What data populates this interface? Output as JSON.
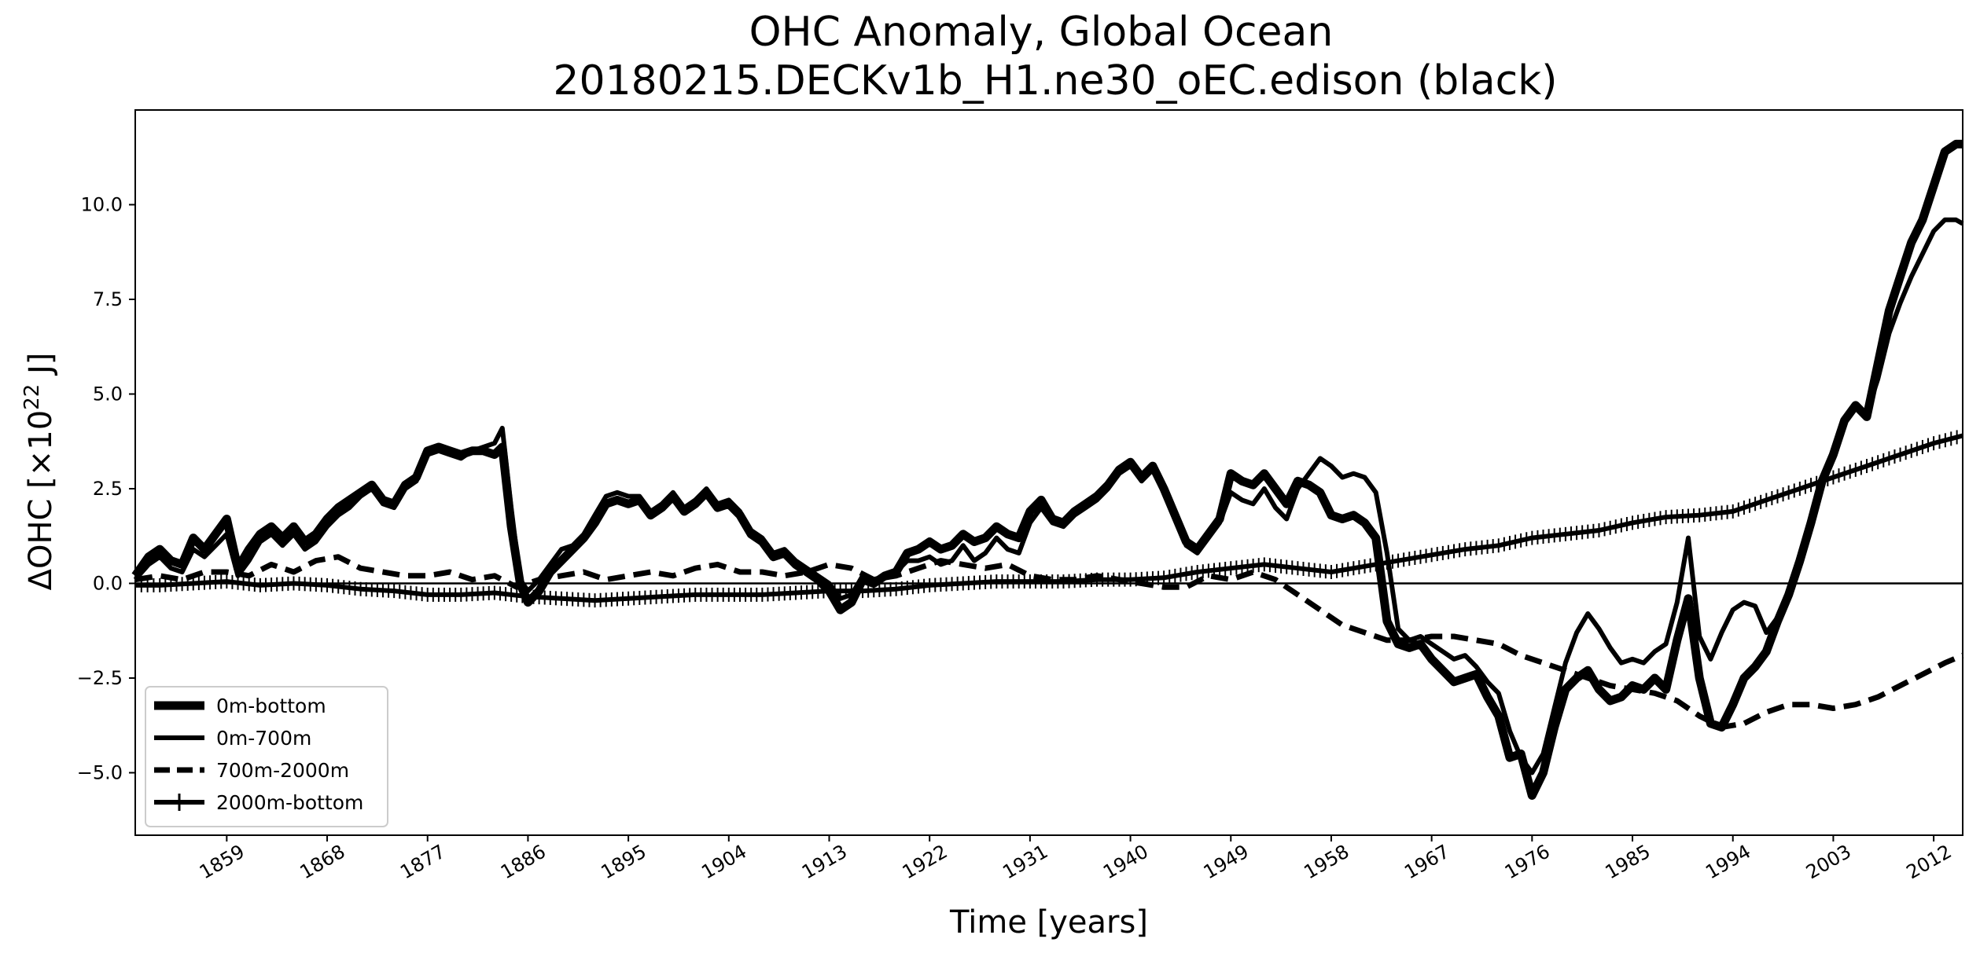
{
  "chart_data": {
    "type": "line",
    "title_line1": "OHC Anomaly, Global Ocean",
    "title_line2": "20180215.DECKv1b_H1.ne30_oEC.edison (black)",
    "xlabel": "Time [years]",
    "ylabel": "ΔOHC [×10",
    "ylabel_exp": "22",
    "ylabel_unit": " J]",
    "xlim": [
      1850.8,
      2014.6
    ],
    "ylim": [
      -6.65,
      12.5
    ],
    "xticks": [
      1859,
      1868,
      1877,
      1886,
      1895,
      1904,
      1913,
      1922,
      1931,
      1940,
      1949,
      1958,
      1967,
      1976,
      1985,
      1994,
      2003,
      2012
    ],
    "yticks": [
      -5.0,
      -2.5,
      0.0,
      2.5,
      5.0,
      7.5,
      10.0
    ],
    "ytick_labels": [
      "−5.0",
      "−2.5",
      "0.0",
      "2.5",
      "5.0",
      "7.5",
      "10.0"
    ],
    "zero_line": 0,
    "legend_position": "lower-left",
    "colors": {
      "line": "#000000",
      "background": "#ffffff",
      "legend_border": "#cccccc"
    },
    "series": [
      {
        "name": "0m-bottom",
        "style": "thick-solid",
        "x": [
          1850.8,
          1852,
          1853,
          1854,
          1855,
          1856,
          1857,
          1858,
          1859,
          1860,
          1861,
          1862,
          1863,
          1864,
          1865,
          1866,
          1867,
          1868,
          1869,
          1870,
          1871,
          1872,
          1873,
          1874,
          1875,
          1876,
          1877,
          1878,
          1879,
          1880,
          1881,
          1882,
          1883,
          1883.7,
          1884.5,
          1885.3,
          1886,
          1887,
          1888,
          1889,
          1890,
          1891,
          1892,
          1893,
          1894,
          1895,
          1896,
          1897,
          1898,
          1899,
          1900,
          1901,
          1902,
          1903,
          1904,
          1905,
          1906,
          1907,
          1908,
          1909,
          1910,
          1911,
          1912,
          1913,
          1914,
          1915,
          1916,
          1917,
          1918,
          1919,
          1920,
          1921,
          1922,
          1923,
          1924,
          1925,
          1926,
          1927,
          1928,
          1929,
          1930,
          1931,
          1932,
          1933,
          1934,
          1935,
          1936,
          1937,
          1938,
          1939,
          1940,
          1941,
          1942,
          1943,
          1944,
          1945,
          1946,
          1947,
          1948,
          1949,
          1950,
          1951,
          1952,
          1953,
          1954,
          1955,
          1956,
          1957,
          1958,
          1959,
          1960,
          1961,
          1962,
          1963,
          1964,
          1965,
          1966,
          1967,
          1968,
          1969,
          1970,
          1971,
          1972,
          1973,
          1974,
          1975,
          1976,
          1977,
          1978,
          1979,
          1980,
          1981,
          1982,
          1983,
          1984,
          1985,
          1986,
          1987,
          1988,
          1989,
          1990,
          1991,
          1992,
          1993,
          1994,
          1995,
          1996,
          1997,
          1998,
          1999,
          2000,
          2001,
          2002,
          2003,
          2004,
          2005,
          2006,
          2007,
          2008,
          2009,
          2010,
          2011,
          2012,
          2013,
          2014,
          2014.6
        ],
        "y": [
          0.2,
          0.7,
          0.9,
          0.6,
          0.5,
          1.2,
          0.9,
          1.3,
          1.7,
          0.4,
          0.9,
          1.3,
          1.5,
          1.2,
          1.5,
          1.1,
          1.3,
          1.7,
          2.0,
          2.2,
          2.4,
          2.6,
          2.2,
          2.1,
          2.6,
          2.8,
          3.5,
          3.6,
          3.5,
          3.4,
          3.5,
          3.5,
          3.4,
          3.6,
          1.5,
          0.0,
          -0.5,
          -0.2,
          0.3,
          0.6,
          0.9,
          1.2,
          1.6,
          2.1,
          2.2,
          2.1,
          2.2,
          1.8,
          2.0,
          2.3,
          1.9,
          2.1,
          2.4,
          2.0,
          2.1,
          1.8,
          1.3,
          1.1,
          0.7,
          0.8,
          0.5,
          0.3,
          0.1,
          -0.2,
          -0.7,
          -0.5,
          0.1,
          0.0,
          0.2,
          0.3,
          0.8,
          0.9,
          1.1,
          0.9,
          1.0,
          1.3,
          1.1,
          1.2,
          1.5,
          1.3,
          1.2,
          1.9,
          2.2,
          1.7,
          1.6,
          1.9,
          2.1,
          2.3,
          2.6,
          3.0,
          3.2,
          2.8,
          3.1,
          2.5,
          1.8,
          1.1,
          0.9,
          1.3,
          1.7,
          2.9,
          2.7,
          2.6,
          2.9,
          2.5,
          2.1,
          2.7,
          2.6,
          2.4,
          1.8,
          1.7,
          1.8,
          1.6,
          1.2,
          -1.0,
          -1.6,
          -1.7,
          -1.6,
          -2.0,
          -2.3,
          -2.6,
          -2.5,
          -2.4,
          -3.0,
          -3.5,
          -4.6,
          -4.5,
          -5.6,
          -5.0,
          -3.8,
          -2.8,
          -2.5,
          -2.3,
          -2.8,
          -3.1,
          -3.0,
          -2.7,
          -2.8,
          -2.5,
          -2.8,
          -1.5,
          -0.4,
          -2.5,
          -3.7,
          -3.8,
          -3.2,
          -2.5,
          -2.2,
          -1.8,
          -1.0,
          -0.3,
          0.6,
          1.6,
          2.7,
          3.4,
          4.3,
          4.7,
          4.4,
          5.8,
          7.2,
          8.1,
          9.0,
          9.6,
          10.5,
          11.4,
          11.6,
          11.6
        ]
      },
      {
        "name": "0m-700m",
        "style": "solid",
        "x": [
          1850.8,
          1852,
          1853,
          1854,
          1855,
          1856,
          1857,
          1858,
          1859,
          1860,
          1861,
          1862,
          1863,
          1864,
          1865,
          1866,
          1867,
          1868,
          1869,
          1870,
          1871,
          1872,
          1873,
          1874,
          1875,
          1876,
          1877,
          1878,
          1879,
          1880,
          1881,
          1882,
          1883,
          1883.7,
          1884.5,
          1885.3,
          1886,
          1887,
          1888,
          1889,
          1890,
          1891,
          1892,
          1893,
          1894,
          1895,
          1896,
          1897,
          1898,
          1899,
          1900,
          1901,
          1902,
          1903,
          1904,
          1905,
          1906,
          1907,
          1908,
          1909,
          1910,
          1911,
          1912,
          1913,
          1914,
          1915,
          1916,
          1917,
          1918,
          1919,
          1920,
          1921,
          1922,
          1923,
          1924,
          1925,
          1926,
          1927,
          1928,
          1929,
          1930,
          1931,
          1932,
          1933,
          1934,
          1935,
          1936,
          1937,
          1938,
          1939,
          1940,
          1941,
          1942,
          1943,
          1944,
          1945,
          1946,
          1947,
          1948,
          1949,
          1950,
          1951,
          1952,
          1953,
          1954,
          1955,
          1956,
          1957,
          1958,
          1959,
          1960,
          1961,
          1962,
          1963,
          1964,
          1965,
          1966,
          1967,
          1968,
          1969,
          1970,
          1971,
          1972,
          1973,
          1974,
          1975,
          1976,
          1977,
          1978,
          1979,
          1980,
          1981,
          1982,
          1983,
          1984,
          1985,
          1986,
          1987,
          1988,
          1989,
          1990,
          1991,
          1992,
          1993,
          1994,
          1995,
          1996,
          1997,
          1998,
          1999,
          2000,
          2001,
          2002,
          2003,
          2004,
          2005,
          2006,
          2007,
          2008,
          2009,
          2010,
          2011,
          2012,
          2013,
          2014,
          2014.6
        ],
        "y": [
          0.1,
          0.5,
          0.7,
          0.4,
          0.3,
          0.9,
          0.7,
          1.0,
          1.3,
          0.2,
          0.6,
          1.1,
          1.3,
          1.0,
          1.3,
          0.9,
          1.1,
          1.5,
          1.8,
          2.0,
          2.3,
          2.5,
          2.1,
          2.0,
          2.5,
          2.7,
          3.4,
          3.5,
          3.4,
          3.3,
          3.5,
          3.6,
          3.7,
          4.1,
          2.0,
          0.1,
          -0.2,
          0.1,
          0.5,
          0.9,
          1.0,
          1.3,
          1.8,
          2.3,
          2.4,
          2.3,
          2.3,
          1.9,
          2.1,
          2.4,
          2.0,
          2.2,
          2.5,
          2.1,
          2.2,
          1.9,
          1.4,
          1.2,
          0.8,
          0.9,
          0.6,
          0.4,
          0.2,
          0.0,
          -0.4,
          -0.3,
          0.2,
          0.1,
          0.2,
          0.3,
          0.6,
          0.6,
          0.7,
          0.5,
          0.6,
          1.0,
          0.6,
          0.8,
          1.2,
          0.9,
          0.8,
          1.6,
          2.0,
          1.6,
          1.5,
          1.8,
          2.0,
          2.2,
          2.5,
          2.9,
          3.1,
          2.7,
          3.0,
          2.4,
          1.7,
          1.0,
          0.8,
          1.2,
          1.6,
          2.4,
          2.2,
          2.1,
          2.5,
          2.0,
          1.7,
          2.5,
          2.9,
          3.3,
          3.1,
          2.8,
          2.9,
          2.8,
          2.4,
          0.8,
          -1.2,
          -1.5,
          -1.4,
          -1.6,
          -1.8,
          -2.0,
          -1.9,
          -2.2,
          -2.6,
          -2.9,
          -3.9,
          -4.6,
          -5.0,
          -4.5,
          -3.3,
          -2.1,
          -1.3,
          -0.8,
          -1.2,
          -1.7,
          -2.1,
          -2.0,
          -2.1,
          -1.8,
          -1.6,
          -0.5,
          1.2,
          -1.4,
          -2.0,
          -1.3,
          -0.7,
          -0.5,
          -0.6,
          -1.3,
          -0.9,
          -0.3,
          0.5,
          1.6,
          2.7,
          3.5,
          4.3,
          4.7,
          4.5,
          5.4,
          6.6,
          7.4,
          8.1,
          8.7,
          9.3,
          9.6,
          9.6,
          9.5
        ]
      },
      {
        "name": "700m-2000m",
        "style": "dashed",
        "x": [
          1850.8,
          1853,
          1855,
          1857,
          1859,
          1861,
          1863,
          1865,
          1867,
          1869,
          1871,
          1873,
          1875,
          1877,
          1879,
          1881,
          1883,
          1885,
          1887,
          1889,
          1891,
          1893,
          1895,
          1897,
          1899,
          1901,
          1903,
          1905,
          1907,
          1909,
          1911,
          1913,
          1915,
          1917,
          1919,
          1921,
          1923,
          1925,
          1927,
          1929,
          1931,
          1933,
          1935,
          1937,
          1939,
          1941,
          1943,
          1945,
          1947,
          1949,
          1951,
          1953,
          1955,
          1957,
          1959,
          1961,
          1963,
          1965,
          1967,
          1969,
          1971,
          1973,
          1975,
          1977,
          1979,
          1981,
          1983,
          1985,
          1987,
          1989,
          1991,
          1993,
          1995,
          1997,
          1999,
          2001,
          2003,
          2005,
          2007,
          2009,
          2011,
          2013,
          2014.6
        ],
        "y": [
          0.1,
          0.2,
          0.1,
          0.3,
          0.3,
          0.2,
          0.5,
          0.3,
          0.6,
          0.7,
          0.4,
          0.3,
          0.2,
          0.2,
          0.3,
          0.1,
          0.2,
          -0.1,
          0.1,
          0.2,
          0.3,
          0.1,
          0.2,
          0.3,
          0.2,
          0.4,
          0.5,
          0.3,
          0.3,
          0.2,
          0.3,
          0.5,
          0.4,
          0.1,
          0.2,
          0.4,
          0.6,
          0.5,
          0.4,
          0.5,
          0.2,
          0.1,
          0.1,
          0.2,
          0.1,
          0.0,
          -0.1,
          -0.1,
          0.2,
          0.1,
          0.3,
          0.1,
          -0.3,
          -0.7,
          -1.1,
          -1.3,
          -1.5,
          -1.5,
          -1.4,
          -1.4,
          -1.5,
          -1.6,
          -1.9,
          -2.1,
          -2.3,
          -2.5,
          -2.7,
          -2.8,
          -2.9,
          -3.1,
          -3.5,
          -3.8,
          -3.7,
          -3.4,
          -3.2,
          -3.2,
          -3.3,
          -3.2,
          -3.0,
          -2.7,
          -2.4,
          -2.1,
          -1.9
        ]
      },
      {
        "name": "2000m-bottom",
        "style": "solid-plus",
        "x": [
          1850.8,
          1853,
          1856,
          1859,
          1862,
          1865,
          1868,
          1871,
          1874,
          1877,
          1880,
          1883,
          1886,
          1889,
          1892,
          1895,
          1898,
          1901,
          1904,
          1907,
          1910,
          1913,
          1916,
          1919,
          1922,
          1925,
          1928,
          1931,
          1934,
          1937,
          1940,
          1943,
          1946,
          1949,
          1952,
          1955,
          1958,
          1961,
          1964,
          1967,
          1970,
          1973,
          1976,
          1979,
          1982,
          1985,
          1988,
          1991,
          1994,
          1997,
          2000,
          2003,
          2006,
          2009,
          2012,
          2014.6
        ],
        "y": [
          -0.05,
          -0.05,
          0.0,
          0.05,
          -0.05,
          0.0,
          -0.05,
          -0.15,
          -0.2,
          -0.3,
          -0.3,
          -0.25,
          -0.35,
          -0.4,
          -0.45,
          -0.4,
          -0.35,
          -0.3,
          -0.3,
          -0.3,
          -0.25,
          -0.2,
          -0.2,
          -0.15,
          -0.05,
          0.0,
          0.05,
          0.05,
          0.05,
          0.1,
          0.1,
          0.15,
          0.3,
          0.4,
          0.5,
          0.4,
          0.3,
          0.45,
          0.6,
          0.75,
          0.9,
          1.0,
          1.2,
          1.3,
          1.4,
          1.6,
          1.75,
          1.8,
          1.9,
          2.2,
          2.5,
          2.8,
          3.1,
          3.4,
          3.7,
          3.9
        ]
      }
    ]
  }
}
